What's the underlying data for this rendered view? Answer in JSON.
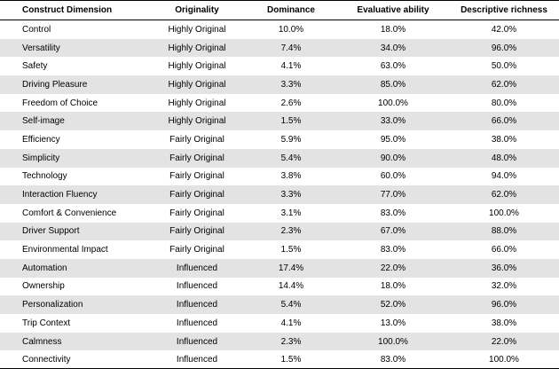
{
  "table": {
    "headers": [
      "Construct Dimension",
      "Originality",
      "Dominance",
      "Evaluative ability",
      "Descriptive richness"
    ],
    "rows": [
      [
        "Control",
        "Highly Original",
        "10.0%",
        "18.0%",
        "42.0%"
      ],
      [
        "Versatility",
        "Highly Original",
        "7.4%",
        "34.0%",
        "96.0%"
      ],
      [
        "Safety",
        "Highly Original",
        "4.1%",
        "63.0%",
        "50.0%"
      ],
      [
        "Driving Pleasure",
        "Highly Original",
        "3.3%",
        "85.0%",
        "62.0%"
      ],
      [
        "Freedom of Choice",
        "Highly Original",
        "2.6%",
        "100.0%",
        "80.0%"
      ],
      [
        "Self-image",
        "Highly Original",
        "1.5%",
        "33.0%",
        "66.0%"
      ],
      [
        "Efficiency",
        "Fairly Original",
        "5.9%",
        "95.0%",
        "38.0%"
      ],
      [
        "Simplicity",
        "Fairly Original",
        "5.4%",
        "90.0%",
        "48.0%"
      ],
      [
        "Technology",
        "Fairly Original",
        "3.8%",
        "60.0%",
        "94.0%"
      ],
      [
        "Interaction Fluency",
        "Fairly Original",
        "3.3%",
        "77.0%",
        "62.0%"
      ],
      [
        "Comfort & Convenience",
        "Fairly Original",
        "3.1%",
        "83.0%",
        "100.0%"
      ],
      [
        "Driver Support",
        "Fairly Original",
        "2.3%",
        "67.0%",
        "88.0%"
      ],
      [
        "Environmental Impact",
        "Fairly Original",
        "1.5%",
        "83.0%",
        "66.0%"
      ],
      [
        "Automation",
        "Influenced",
        "17.4%",
        "22.0%",
        "36.0%"
      ],
      [
        "Ownership",
        "Influenced",
        "14.4%",
        "18.0%",
        "32.0%"
      ],
      [
        "Personalization",
        "Influenced",
        "5.4%",
        "52.0%",
        "96.0%"
      ],
      [
        "Trip Context",
        "Influenced",
        "4.1%",
        "13.0%",
        "38.0%"
      ],
      [
        "Calmness",
        "Influenced",
        "2.3%",
        "100.0%",
        "22.0%"
      ],
      [
        "Connectivity",
        "Influenced",
        "1.5%",
        "83.0%",
        "100.0%"
      ]
    ]
  },
  "colors": {
    "shade": "#e3e3e3",
    "rule": "#000000"
  }
}
